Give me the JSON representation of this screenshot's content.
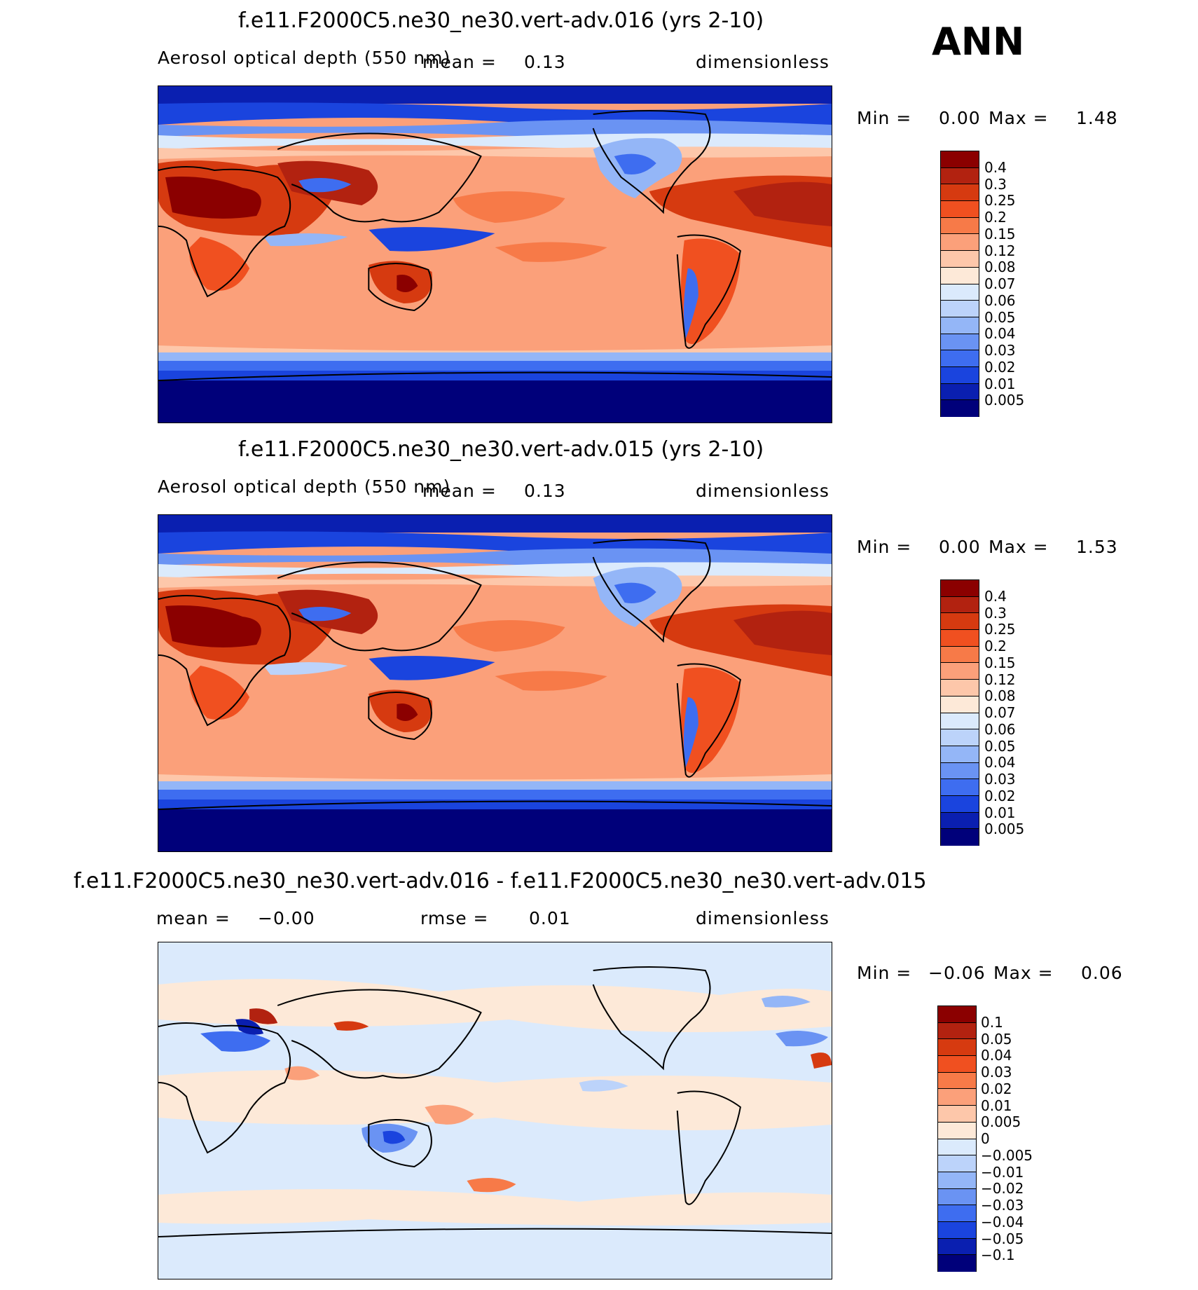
{
  "season": "ANN",
  "panels": [
    {
      "title": "f.e11.F2000C5.ne30_ne30.vert-adv.016 (yrs 2-10)",
      "variable": "Aerosol optical depth (550 nm)",
      "stat_label": "mean =",
      "stat_value": "0.13",
      "units": "dimensionless",
      "min_label": "Min =",
      "min_value": "0.00",
      "max_label": "Max =",
      "max_value": "1.48"
    },
    {
      "title": "f.e11.F2000C5.ne30_ne30.vert-adv.015 (yrs 2-10)",
      "variable": "Aerosol optical depth (550 nm)",
      "stat_label": "mean =",
      "stat_value": "0.13",
      "units": "dimensionless",
      "min_label": "Min =",
      "min_value": "0.00",
      "max_label": "Max =",
      "max_value": "1.53"
    },
    {
      "title": "f.e11.F2000C5.ne30_ne30.vert-adv.016 - f.e11.F2000C5.ne30_ne30.vert-adv.015",
      "mean_label": "mean =",
      "mean_value": "−0.00",
      "rmse_label": "rmse =",
      "rmse_value": "0.01",
      "units": "dimensionless",
      "min_label": "Min =",
      "min_value": "−0.06",
      "max_label": "Max =",
      "max_value": "0.06"
    }
  ],
  "colorbar_abs": {
    "labels": [
      "0.4",
      "0.3",
      "0.25",
      "0.2",
      "0.15",
      "0.12",
      "0.08",
      "0.07",
      "0.06",
      "0.05",
      "0.04",
      "0.03",
      "0.02",
      "0.01",
      "0.005"
    ],
    "colors": [
      "#8b0000",
      "#b22210",
      "#d63a10",
      "#f05020",
      "#f77a48",
      "#fba07a",
      "#fdc7aa",
      "#fde9d8",
      "#dbeafc",
      "#bcd3fa",
      "#94b6f7",
      "#6a93f3",
      "#3e6df0",
      "#1a44de",
      "#0a1fb0",
      "#00007a"
    ]
  },
  "colorbar_diff": {
    "labels": [
      "0.1",
      "0.05",
      "0.04",
      "0.03",
      "0.02",
      "0.01",
      "0.005",
      "0",
      "−0.005",
      "−0.01",
      "−0.02",
      "−0.03",
      "−0.04",
      "−0.05",
      "−0.1"
    ],
    "colors": [
      "#8b0000",
      "#b22210",
      "#d63a10",
      "#f05020",
      "#f77a48",
      "#fba07a",
      "#fdc7aa",
      "#fde9d8",
      "#dbeafc",
      "#bcd3fa",
      "#94b6f7",
      "#6a93f3",
      "#3e6df0",
      "#1a44de",
      "#0a1fb0",
      "#00007a"
    ]
  }
}
